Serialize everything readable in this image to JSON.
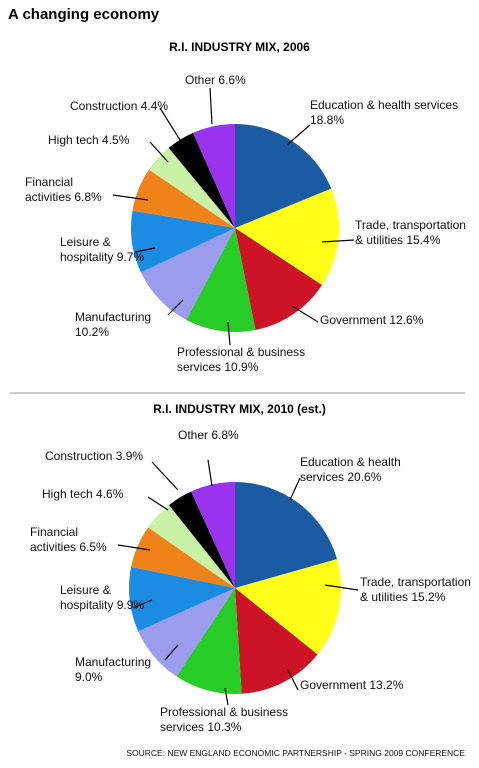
{
  "title": "A changing economy",
  "source": "SOURCE: NEW ENGLAND ECONOMIC PARTNERSHIP - SPRING 2009 CONFERENCE",
  "chart_data": [
    {
      "type": "pie",
      "title": "R.I. INDUSTRY MIX, 2006",
      "categories": [
        "Education & health services",
        "Trade, transportation & utilities",
        "Government",
        "Professional & business services",
        "Manufacturing",
        "Leisure & hospitality",
        "Financial activities",
        "High tech",
        "Construction",
        "Other"
      ],
      "values": [
        18.8,
        15.4,
        12.6,
        10.9,
        10.2,
        9.7,
        6.8,
        4.5,
        4.4,
        6.6
      ],
      "value_labels": [
        "18.8%",
        "15.4%",
        "12.6%",
        "10.9%",
        "10.2%",
        "9.7%",
        "6.8%",
        "4.5%",
        "4.4%",
        "6.6%"
      ],
      "colors": [
        "#1b5ba3",
        "#ffff1a",
        "#cc1426",
        "#27cc27",
        "#9c9cee",
        "#1c8ce2",
        "#f0821a",
        "#c9f2a6",
        "#000000",
        "#9a33ee"
      ]
    },
    {
      "type": "pie",
      "title": "R.I. INDUSTRY MIX, 2010 (est.)",
      "categories": [
        "Education & health services",
        "Trade, transportation & utilities",
        "Government",
        "Professional & business services",
        "Manufacturing",
        "Leisure & hospitality",
        "Financial activities",
        "High tech",
        "Construction",
        "Other"
      ],
      "values": [
        20.6,
        15.2,
        13.2,
        10.3,
        9.0,
        9.9,
        6.5,
        4.6,
        3.9,
        6.8
      ],
      "value_labels": [
        "20.6%",
        "15.2%",
        "13.2%",
        "10.3%",
        "9.0%",
        "9.9%",
        "6.5%",
        "4.6%",
        "3.9%",
        "6.8%"
      ],
      "colors": [
        "#1b5ba3",
        "#ffff1a",
        "#cc1426",
        "#27cc27",
        "#9c9cee",
        "#1c8ce2",
        "#f0821a",
        "#c9f2a6",
        "#000000",
        "#9a33ee"
      ]
    }
  ]
}
